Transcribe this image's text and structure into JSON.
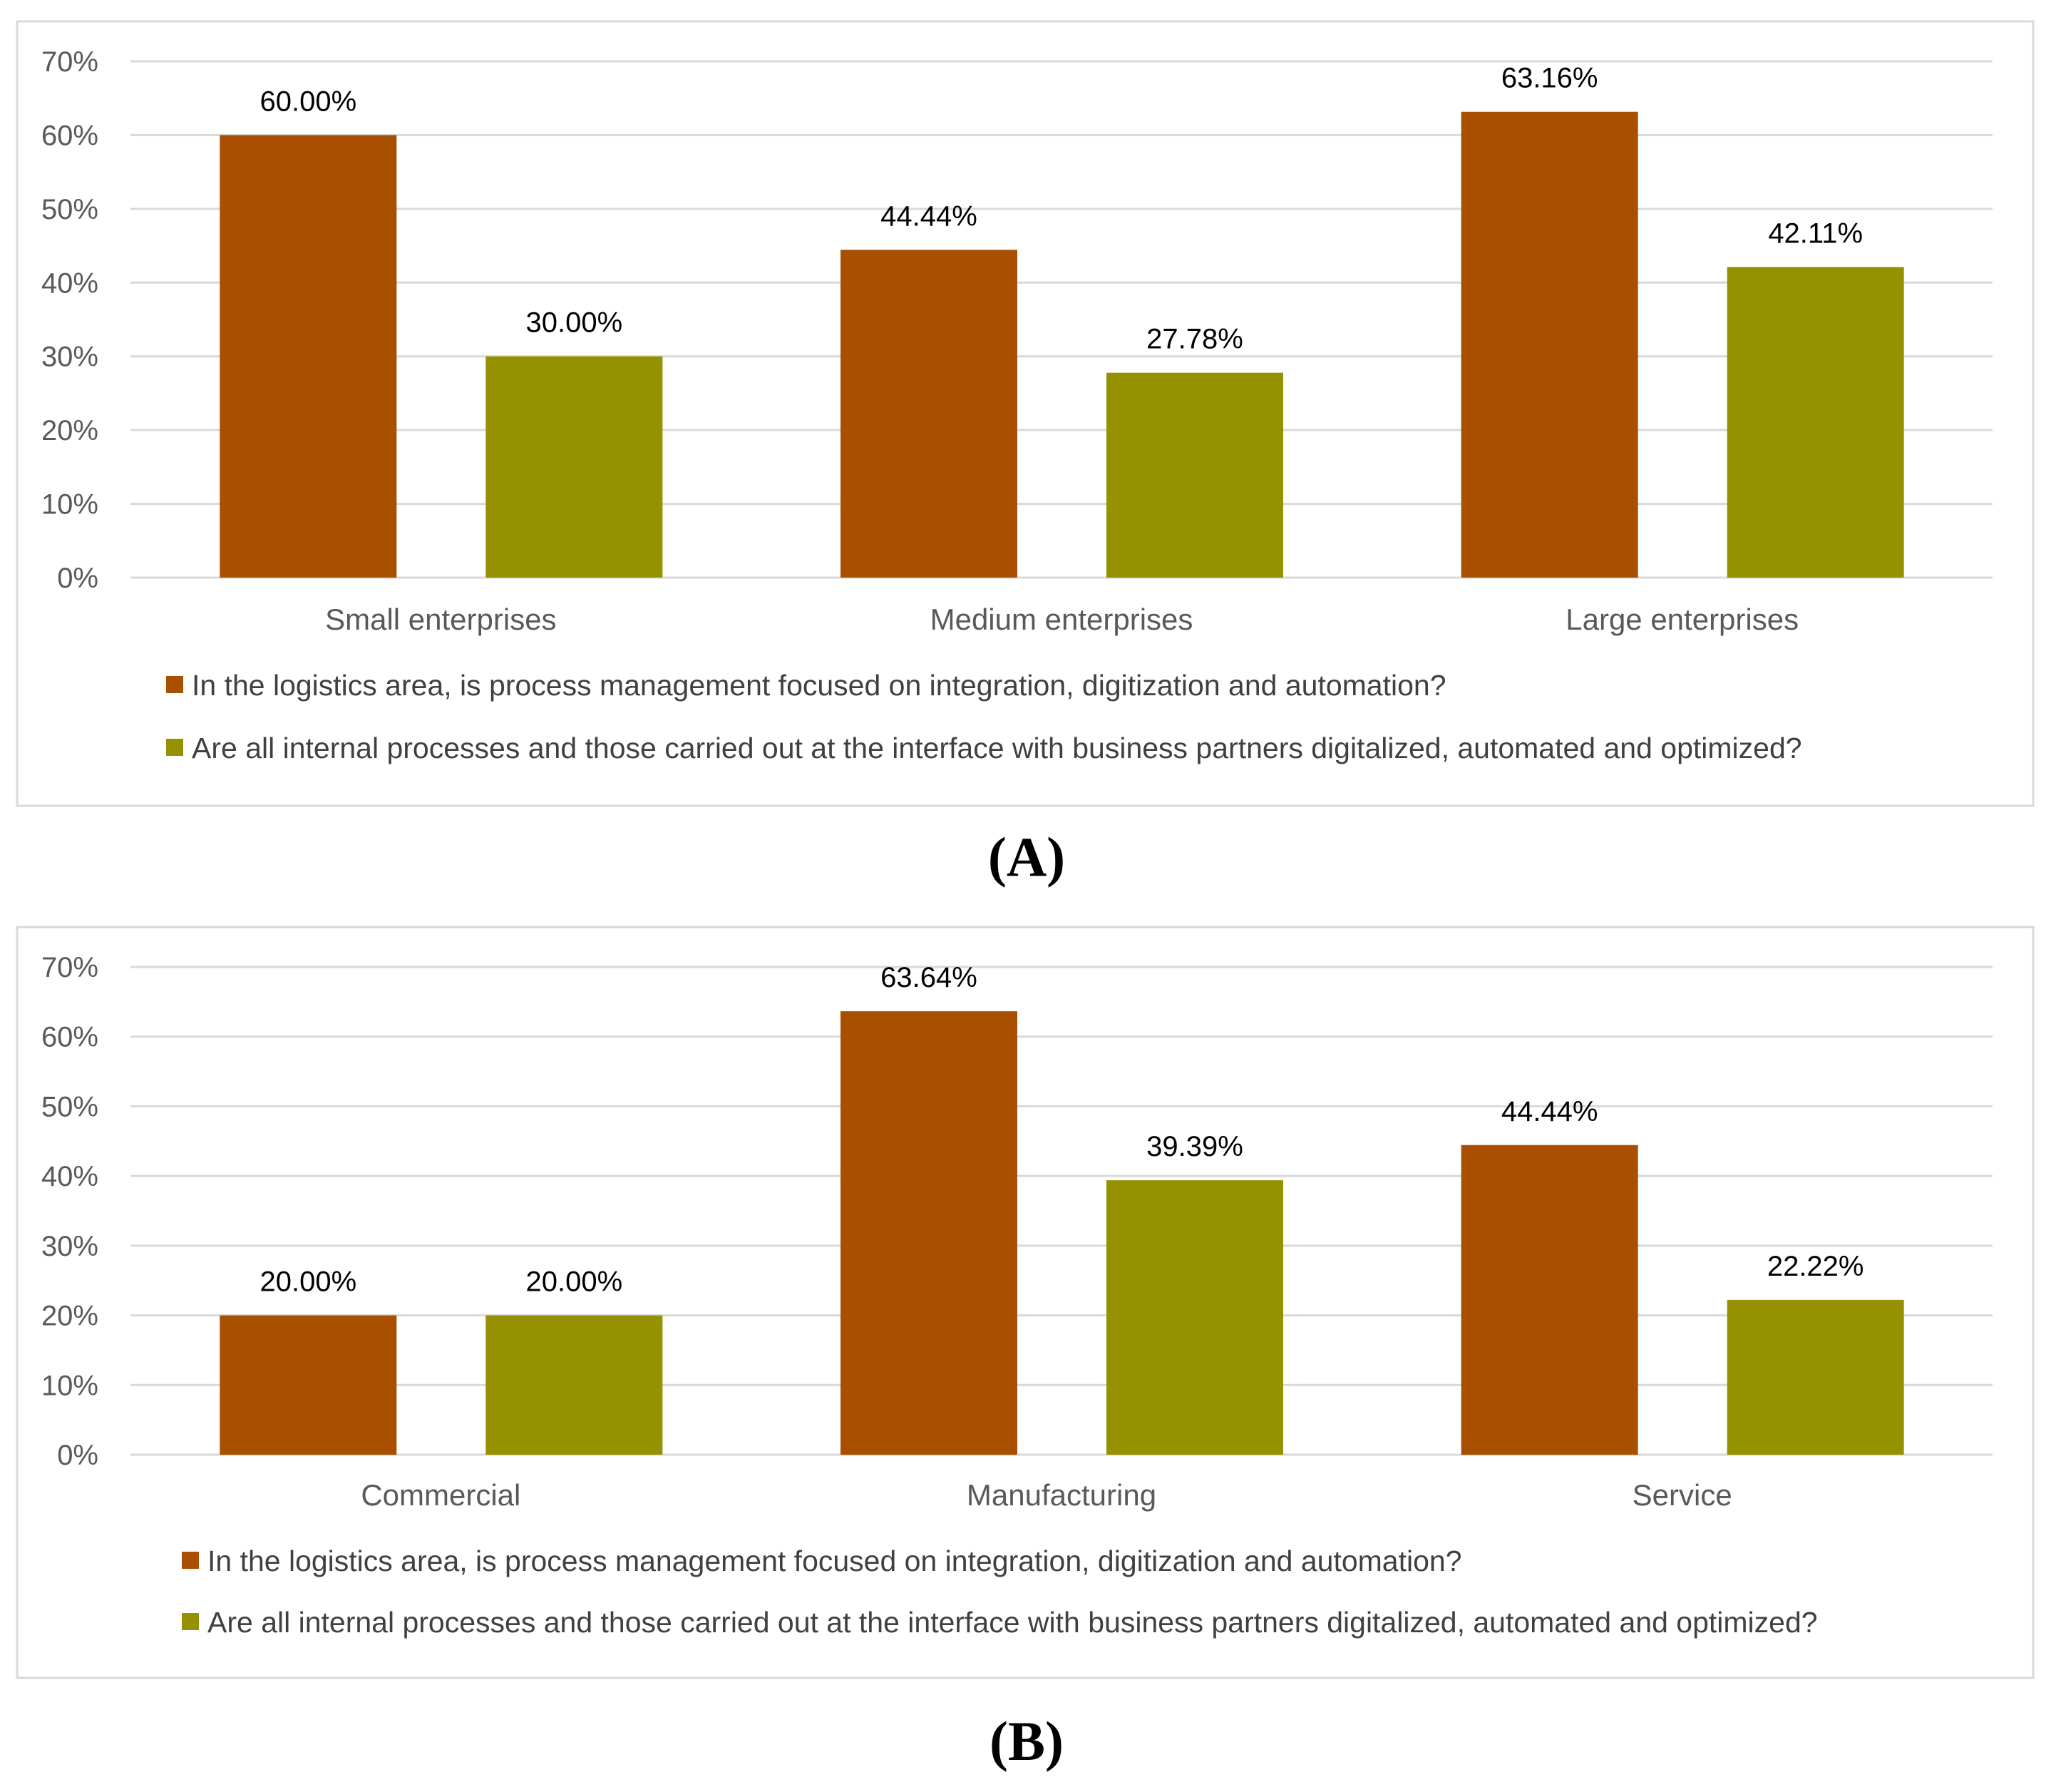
{
  "colors": {
    "series1": "#a84f00",
    "series2": "#969100"
  },
  "chart_data": [
    {
      "panel": "(A)",
      "type": "bar",
      "categories": [
        "Small enterprises",
        "Medium enterprises",
        "Large enterprises"
      ],
      "series": [
        {
          "name": "In the logistics area, is process management focused on integration, digitization and automation?",
          "values": [
            60.0,
            44.44,
            63.16
          ],
          "labels": [
            "60.00%",
            "44.44%",
            "63.16%"
          ]
        },
        {
          "name": "Are all internal processes and those carried out at the interface with business partners digitalized, automated and optimized?",
          "values": [
            30.0,
            27.78,
            42.11
          ],
          "labels": [
            "30.00%",
            "27.78%",
            "42.11%"
          ]
        }
      ],
      "ylim": [
        0,
        70
      ],
      "yticks": [
        "0%",
        "10%",
        "20%",
        "30%",
        "40%",
        "50%",
        "60%",
        "70%"
      ],
      "grid": true,
      "legend": "bottom"
    },
    {
      "panel": "(B)",
      "type": "bar",
      "categories": [
        "Commercial",
        "Manufacturing",
        "Service"
      ],
      "series": [
        {
          "name": "In the logistics area, is process management focused on integration, digitization and automation?",
          "values": [
            20.0,
            63.64,
            44.44
          ],
          "labels": [
            "20.00%",
            "63.64%",
            "44.44%"
          ]
        },
        {
          "name": "Are all internal processes and those carried out at the interface with business partners digitalized, automated and optimized?",
          "values": [
            20.0,
            39.39,
            22.22
          ],
          "labels": [
            "20.00%",
            "39.39%",
            "22.22%"
          ]
        }
      ],
      "ylim": [
        0,
        70
      ],
      "yticks": [
        "0%",
        "10%",
        "20%",
        "30%",
        "40%",
        "50%",
        "60%",
        "70%"
      ],
      "grid": true,
      "legend": "bottom"
    }
  ]
}
